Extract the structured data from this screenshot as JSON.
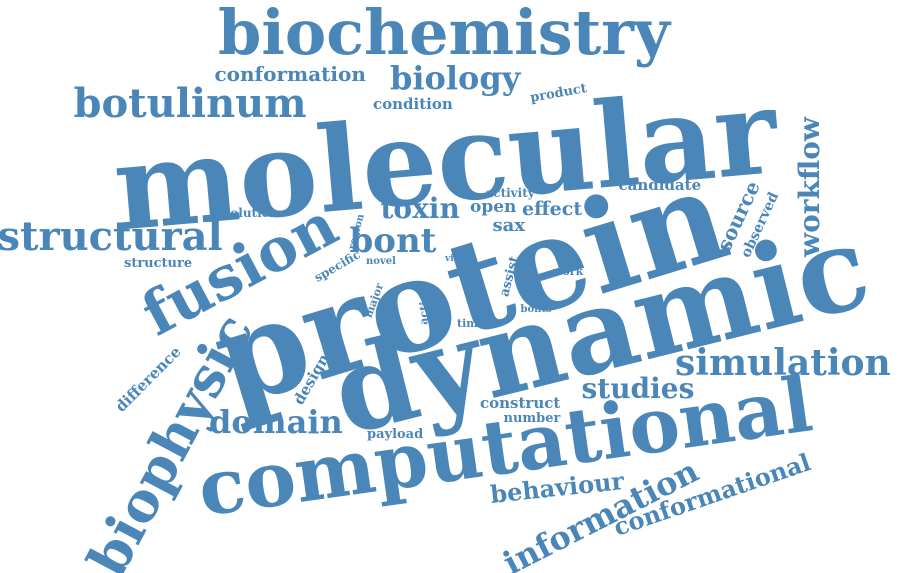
{
  "accent_color": "#4a86b8",
  "words": {
    "molecular": "molecular",
    "protein": "protein",
    "dynamic": "dynamic",
    "computational": "computational",
    "biochemistry": "biochemistry",
    "fusion": "fusion",
    "biophysic": "biophysic",
    "botulinum": "botulinum",
    "structural": "structural",
    "simulation": "simulation",
    "biology": "biology",
    "domain": "domain",
    "studies": "studies",
    "conformation": "conformation",
    "information": "information",
    "conformational": "conformational",
    "behaviour": "behaviour",
    "workflow": "workflow",
    "toxin": "toxin",
    "bont": "bont",
    "source": "source",
    "candidate": "candidate",
    "condition": "condition",
    "product": "product",
    "activity": "activity",
    "open": "open",
    "effect": "effect",
    "sax": "sax",
    "observed": "observed",
    "solution": "solution",
    "region": "region",
    "structure": "structure",
    "specific": "specific",
    "novel": "novel",
    "vitro": "vitro",
    "assist": "assist",
    "work": "work",
    "major": "major",
    "action": "action",
    "bonts": "bonts",
    "time": "time",
    "difference": "difference",
    "design": "design",
    "construct": "construct",
    "number": "number",
    "payload": "payload"
  }
}
